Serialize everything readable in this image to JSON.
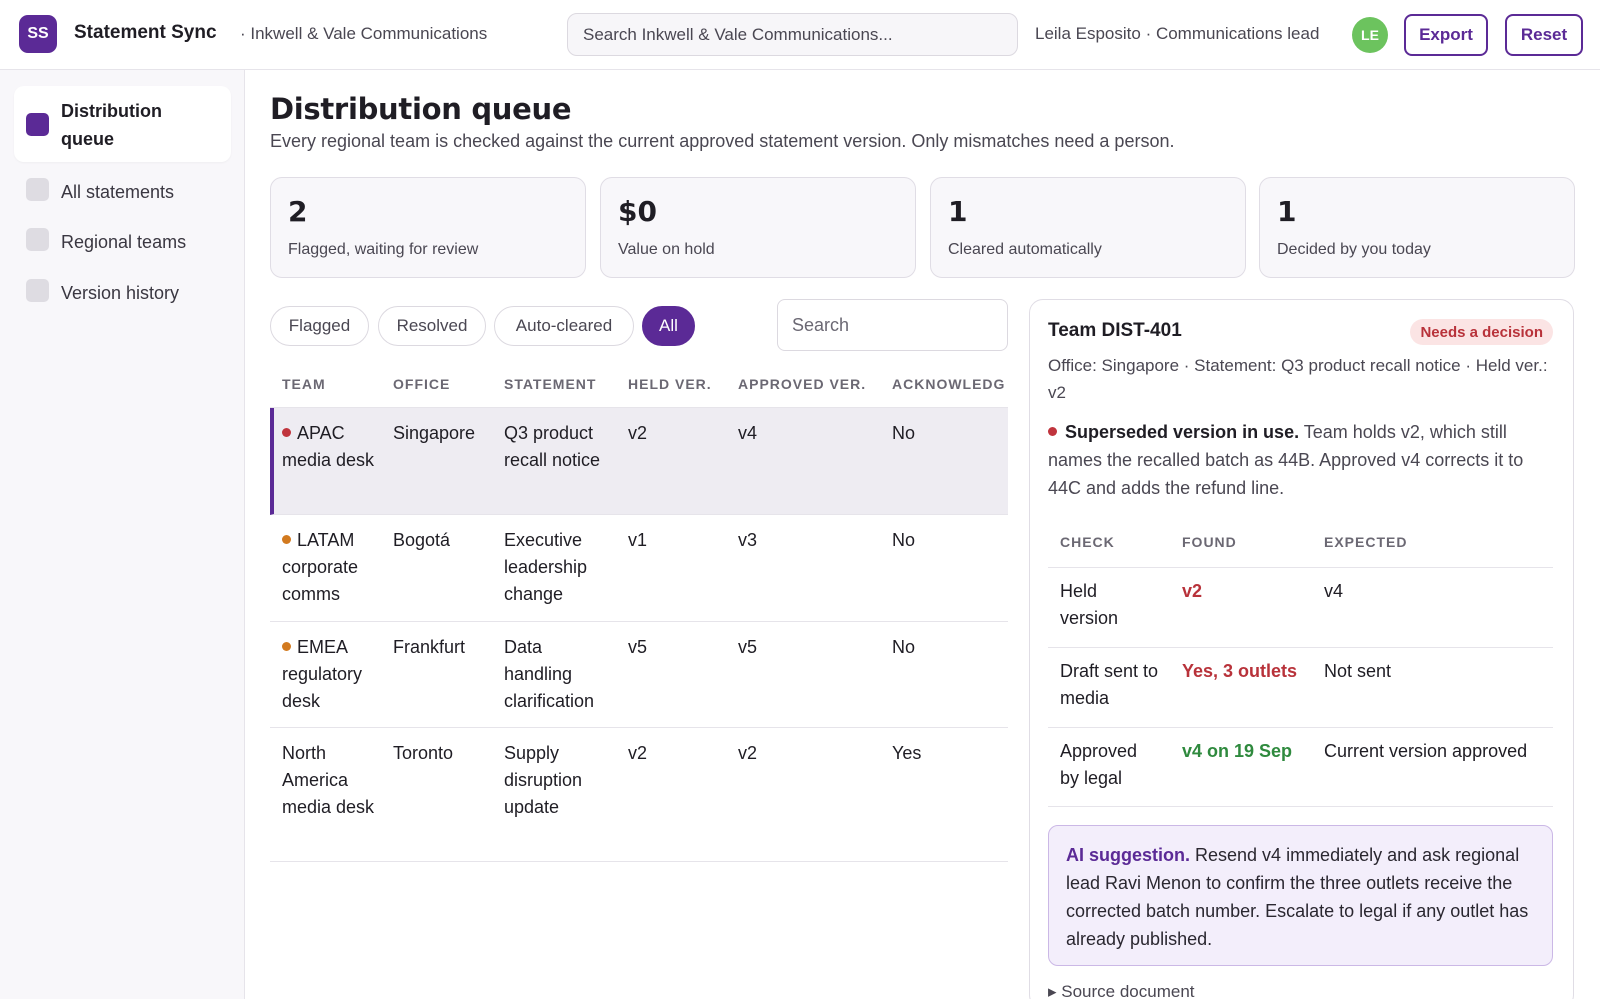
{
  "header": {
    "logo": "SS",
    "app_name": "Statement Sync",
    "org": "· Inkwell & Vale Communications",
    "search_placeholder": "Search Inkwell & Vale Communications...",
    "user": "Leila Esposito · Communications lead",
    "avatar": "LE",
    "export_label": "Export",
    "reset_label": "Reset"
  },
  "sidebar": {
    "items": [
      {
        "label": "Distribution queue",
        "active": true
      },
      {
        "label": "All statements"
      },
      {
        "label": "Regional teams"
      },
      {
        "label": "Version history"
      }
    ]
  },
  "main": {
    "title": "Distribution queue",
    "subtitle": "Every regional team is checked against the current approved statement version. Only mismatches need a person.",
    "stats": [
      {
        "value": "2",
        "label": "Flagged, waiting for review"
      },
      {
        "value": "$0",
        "label": "Value on hold"
      },
      {
        "value": "1",
        "label": "Cleared automatically"
      },
      {
        "value": "1",
        "label": "Decided by you today"
      }
    ],
    "filters": [
      "Flagged",
      "Resolved",
      "Auto-cleared",
      "All"
    ],
    "active_filter": "All",
    "search_placeholder": "Search",
    "table": {
      "headers": [
        "TEAM",
        "OFFICE",
        "STATEMENT",
        "HELD VER.",
        "APPROVED VER.",
        "ACKNOWLEDG"
      ],
      "rows": [
        {
          "team": "APAC media desk",
          "office": "Singapore",
          "statement": "Q3 product recall notice",
          "held": "v2",
          "approved": "v4",
          "ack": "No",
          "status": "red"
        },
        {
          "team": "LATAM corporate comms",
          "office": "Bogotá",
          "statement": "Executive leadership change",
          "held": "v1",
          "approved": "v3",
          "ack": "No",
          "status": "orange"
        },
        {
          "team": "EMEA regulatory desk",
          "office": "Frankfurt",
          "statement": "Data handling clarification",
          "held": "v5",
          "approved": "v5",
          "ack": "No",
          "status": "orange"
        },
        {
          "team": "North America media desk",
          "office": "Toronto",
          "statement": "Supply disruption update",
          "held": "v2",
          "approved": "v2",
          "ack": "Yes",
          "status": "none"
        }
      ]
    }
  },
  "detail": {
    "title": "Team DIST-401",
    "badge": "Needs a decision",
    "meta": "Office: Singapore · Statement: Q3 product recall notice · Held ver.: v2",
    "summary_bold": "Superseded version in use.",
    "summary_text": " Team holds v2, which still names the recalled batch as 44B. Approved v4 corrects it to 44C and adds the refund line.",
    "checks": {
      "headers": [
        "CHECK",
        "FOUND",
        "EXPECTED"
      ],
      "rows": [
        {
          "check": "Held version",
          "found": "v2",
          "expected": "v4",
          "tone": "bad"
        },
        {
          "check": "Draft sent to media",
          "found": "Yes, 3 outlets",
          "expected": "Not sent",
          "tone": "bad"
        },
        {
          "check": "Approved by legal",
          "found": "v4 on 19 Sep",
          "expected": "Current version approved",
          "tone": "good"
        }
      ]
    },
    "ai_label": "AI suggestion.",
    "ai_text": " Resend v4 immediately and ask regional lead Ravi Menon to confirm the three outlets receive the corrected batch number. Escalate to legal if any outlet has already published.",
    "source": "▸ Source document"
  },
  "colors": {
    "accent": "#5b2a96",
    "danger": "#c0343d",
    "warning": "#d27a1f",
    "success": "#2f8a3e",
    "avatar": "#6cc35e"
  }
}
